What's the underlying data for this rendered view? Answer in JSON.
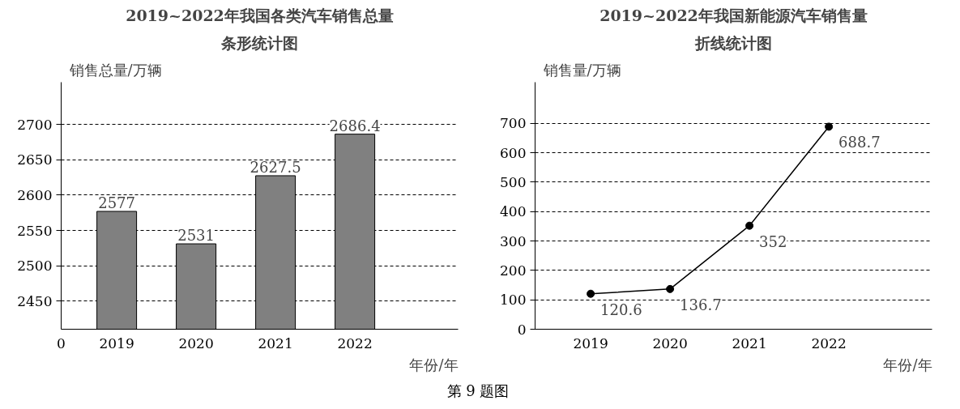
{
  "chart_data": [
    {
      "type": "bar",
      "title": "2019~2022年我国各类汽车销售总量",
      "subtitle": "条形统计图",
      "ylabel": "销售总量/万辆",
      "xlabel": "年份/年",
      "categories": [
        "2019",
        "2020",
        "2021",
        "2022"
      ],
      "values": [
        2577,
        2531,
        2627.5,
        2686.4
      ],
      "color": "#808080",
      "ylim": [
        2410,
        2760
      ],
      "yticks": [
        2450,
        2500,
        2550,
        2600,
        2650,
        2700
      ],
      "grid": "y",
      "data_labels": true,
      "annotations": [
        "0",
        "第 9 题图"
      ]
    },
    {
      "type": "line",
      "title": "2019~2022年我国新能源汽车销售量",
      "subtitle": "折线统计图",
      "ylabel": "销售量/万辆",
      "xlabel": "年份/年",
      "categories": [
        "2019",
        "2020",
        "2021",
        "2022"
      ],
      "values": [
        120.6,
        136.7,
        352,
        688.7
      ],
      "color": "#000000",
      "marker": "circle",
      "line_style": "solid",
      "ylim": [
        0,
        840
      ],
      "yticks": [
        0,
        100,
        200,
        300,
        400,
        500,
        600,
        700
      ],
      "grid": "y",
      "data_labels": true
    }
  ]
}
